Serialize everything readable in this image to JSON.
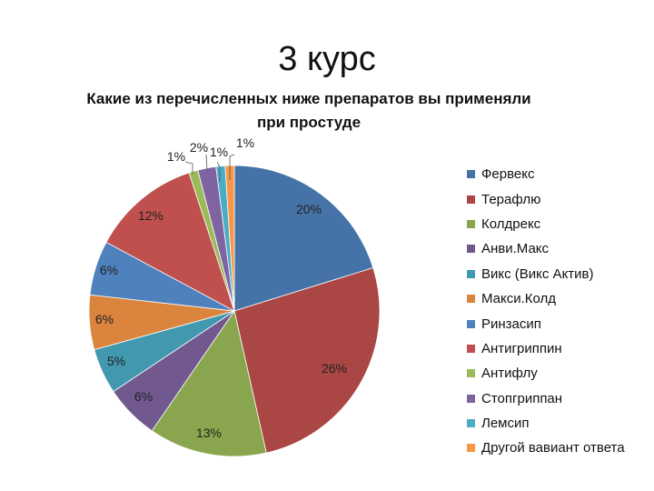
{
  "slide": {
    "title": "3 курс"
  },
  "chart_data": {
    "type": "pie",
    "title": "Какие из перечисленных ниже препаратов вы применяли при простуде",
    "title_lines": [
      "Какие из перечисленных ниже препаратов вы применяли",
      "при простуде"
    ],
    "legend_position": "right",
    "slices": [
      {
        "label": "Фервекс",
        "value": 20,
        "data_label": "20%",
        "color": "#4572A7"
      },
      {
        "label": "Терафлю",
        "value": 26,
        "data_label": "26%",
        "color": "#AA4643"
      },
      {
        "label": "Колдрекс",
        "value": 13,
        "data_label": "13%",
        "color": "#89A54E"
      },
      {
        "label": "Анви.Макс",
        "value": 6,
        "data_label": "6%",
        "color": "#71588F"
      },
      {
        "label": "Викс (Викс Актив)",
        "value": 5,
        "data_label": "5%",
        "color": "#4198AF"
      },
      {
        "label": "Макси.Колд",
        "value": 6,
        "data_label": "6%",
        "color": "#DB843D"
      },
      {
        "label": "Ринзасип",
        "value": 6,
        "data_label": "6%",
        "color": "#4F81BD"
      },
      {
        "label": "Антигриппин",
        "value": 12,
        "data_label": "12%",
        "color": "#C0504D"
      },
      {
        "label": "Антифлу",
        "value": 1,
        "data_label": "1%",
        "color": "#9BBB59"
      },
      {
        "label": "Стопгриппан",
        "value": 2,
        "data_label": "2%",
        "color": "#8064A2"
      },
      {
        "label": "Лемсип",
        "value": 1,
        "data_label": "1%",
        "color": "#4BACC6"
      },
      {
        "label": "Другой вавиант ответа",
        "value": 1,
        "data_label": "1%",
        "color": "#F79646"
      }
    ]
  }
}
